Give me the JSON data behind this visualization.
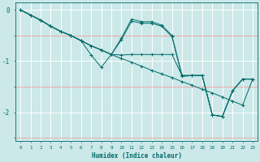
{
  "xlabel": "Humidex (Indice chaleur)",
  "bg_color": "#cce8e8",
  "line_color": "#006b6b",
  "grid_major_color": "#ffffff",
  "grid_minor_y_color": "#f0a0a0",
  "xlim": [
    -0.5,
    23.5
  ],
  "ylim": [
    -2.55,
    0.15
  ],
  "yticks": [
    0,
    -1,
    -2
  ],
  "xticks": [
    0,
    1,
    2,
    3,
    4,
    5,
    6,
    7,
    8,
    9,
    10,
    11,
    12,
    13,
    14,
    15,
    16,
    17,
    18,
    19,
    20,
    21,
    22,
    23
  ],
  "series": [
    {
      "x": [
        0,
        1,
        2,
        3,
        4,
        5,
        6,
        7,
        8,
        9,
        10,
        11,
        12,
        13,
        14,
        15,
        16,
        17,
        18,
        19,
        20,
        21,
        22,
        23
      ],
      "y": [
        0.0,
        -0.1,
        -0.2,
        -0.32,
        -0.42,
        -0.5,
        -0.6,
        -0.7,
        -0.78,
        -0.87,
        -0.95,
        -1.02,
        -1.1,
        -1.18,
        -1.25,
        -1.32,
        -1.4,
        -1.47,
        -1.55,
        -1.62,
        -1.7,
        -1.78,
        -1.86,
        -1.35
      ]
    },
    {
      "x": [
        0,
        1,
        2,
        3,
        4,
        5,
        6,
        7,
        8,
        9,
        10,
        11,
        12,
        13,
        14,
        15,
        16,
        17,
        18,
        19,
        20,
        21,
        22,
        23
      ],
      "y": [
        0.0,
        -0.1,
        -0.2,
        -0.32,
        -0.42,
        -0.5,
        -0.6,
        -0.7,
        -0.78,
        -0.87,
        -0.55,
        -0.18,
        -0.23,
        -0.23,
        -0.3,
        -0.5,
        -1.28,
        -1.28,
        -1.28,
        -2.05,
        -2.08,
        -1.58,
        -1.35,
        -1.35
      ]
    },
    {
      "x": [
        0,
        1,
        2,
        3,
        4,
        5,
        6,
        7,
        8,
        9,
        10,
        11,
        12,
        13,
        14,
        15,
        16,
        17,
        18,
        19,
        20,
        21,
        22,
        23
      ],
      "y": [
        0.0,
        -0.1,
        -0.2,
        -0.32,
        -0.42,
        -0.5,
        -0.6,
        -0.7,
        -0.78,
        -0.87,
        -0.58,
        -0.22,
        -0.26,
        -0.26,
        -0.32,
        -0.52,
        -1.3,
        -1.28,
        -1.28,
        -2.05,
        -2.08,
        -1.58,
        -1.35,
        -1.35
      ]
    },
    {
      "x": [
        0,
        1,
        2,
        3,
        4,
        5,
        6,
        7,
        8,
        9,
        10,
        11,
        12,
        13,
        14,
        15,
        16,
        17,
        18,
        19,
        20,
        21,
        22,
        23
      ],
      "y": [
        0.0,
        -0.1,
        -0.2,
        -0.32,
        -0.42,
        -0.5,
        -0.6,
        -0.88,
        -1.12,
        -0.87,
        -0.88,
        -0.87,
        -0.87,
        -0.87,
        -0.87,
        -0.87,
        -1.28,
        -1.28,
        -1.28,
        -2.05,
        -2.08,
        -1.58,
        -1.35,
        -1.35
      ]
    }
  ]
}
